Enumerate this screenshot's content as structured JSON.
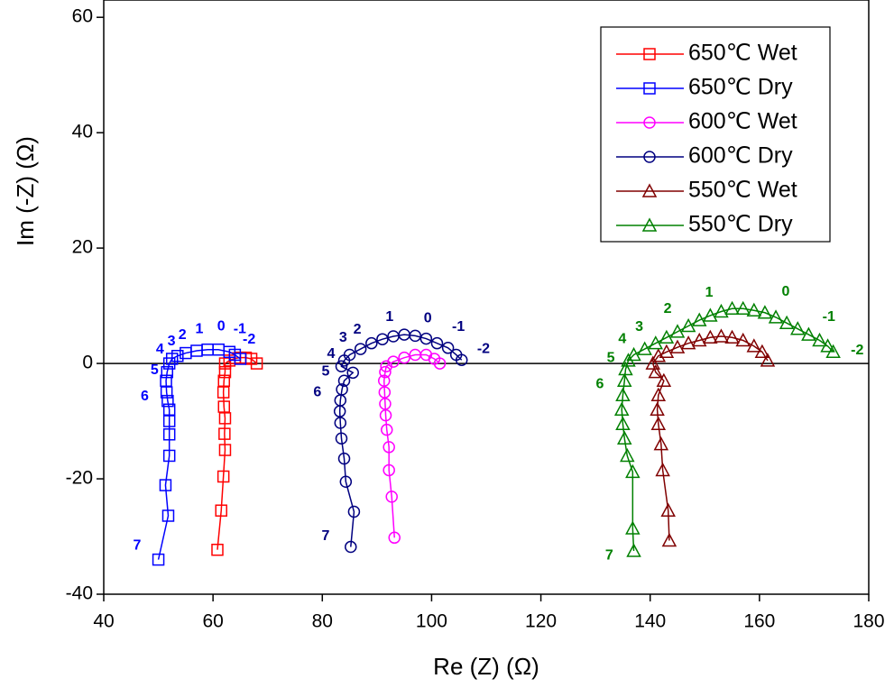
{
  "chart_data": {
    "type": "scatter",
    "xlabel": "Re (Z) (Ω)",
    "ylabel": "Im (-Z) (Ω)",
    "xlim": [
      40,
      180
    ],
    "xticks": [
      40,
      60,
      80,
      100,
      120,
      140,
      160,
      180
    ],
    "ylim": [
      -40,
      63
    ],
    "yticks": [
      -40,
      -20,
      0,
      20,
      40,
      60
    ],
    "zero_line": true,
    "legend": "upper right",
    "series": [
      {
        "name": "650℃ Wet",
        "color": "#ff0000",
        "marker": "square",
        "x": [
          60.8,
          61.5,
          61.9,
          62.2,
          62.1,
          62.2,
          62,
          61.9,
          62,
          62.2,
          62.2,
          63,
          64,
          65,
          66,
          67,
          68
        ],
        "values": [
          -32.3,
          -25.5,
          -19.6,
          -15,
          -12.2,
          -9.5,
          -7.5,
          -5,
          -3,
          -1.5,
          0,
          0.5,
          0.9,
          1,
          1,
          0.8,
          0
        ]
      },
      {
        "name": "650℃ Dry",
        "color": "#0000ff",
        "marker": "square",
        "x": [
          50,
          51.8,
          51.3,
          52,
          52,
          52,
          52,
          51.7,
          51.5,
          51.4,
          51.6,
          52,
          52.5,
          53.5,
          55,
          57,
          59,
          61,
          63,
          64,
          65
        ],
        "values": [
          -34,
          -26.4,
          -21.1,
          -16,
          -12.3,
          -10,
          -8,
          -6.5,
          -5,
          -3,
          -1.5,
          0,
          0.8,
          1.3,
          1.8,
          2.2,
          2.4,
          2.4,
          2,
          1.5,
          0.8
        ]
      },
      {
        "name": "600℃ Wet",
        "color": "#ff00ff",
        "marker": "circle",
        "x": [
          93.2,
          92.7,
          92.2,
          92.2,
          91.8,
          91.6,
          91.5,
          91.4,
          91.3,
          91.5,
          91.7,
          93,
          95,
          97,
          99,
          100.5,
          101.5
        ],
        "values": [
          -30.2,
          -23.1,
          -18.5,
          -14.5,
          -11.5,
          -9,
          -7,
          -5,
          -3,
          -1.5,
          -0.5,
          0.3,
          1,
          1.5,
          1.5,
          0.8,
          0
        ]
      },
      {
        "name": "600℃ Dry",
        "color": "#000080",
        "marker": "circle",
        "x": [
          85.2,
          85.8,
          84.3,
          84,
          83.5,
          83.3,
          83.2,
          83.3,
          83.6,
          84,
          85.6,
          83.5,
          84,
          85,
          87,
          89,
          91,
          93,
          95,
          97,
          99,
          101,
          103,
          104.5,
          105.5
        ],
        "values": [
          -31.8,
          -25.7,
          -20.5,
          -16.5,
          -13,
          -10.3,
          -8.3,
          -6.4,
          -4.5,
          -3,
          -1.6,
          -0.5,
          0.5,
          1.5,
          2.5,
          3.5,
          4.2,
          4.7,
          5,
          4.8,
          4.3,
          3.5,
          2.7,
          1.5,
          0.6
        ]
      },
      {
        "name": "550℃ Wet",
        "color": "#800000",
        "marker": "triangle",
        "x": [
          143.5,
          143.3,
          142.3,
          142,
          141.5,
          141.3,
          141.5,
          142.5,
          141,
          140.5,
          141.5,
          143,
          145,
          147,
          149,
          151,
          153,
          155,
          157,
          159,
          160.5,
          161.5
        ],
        "values": [
          -30.7,
          -25.5,
          -18.5,
          -14,
          -10.5,
          -8,
          -5.5,
          -3,
          -1.5,
          0,
          1.3,
          2,
          2.8,
          3.5,
          4,
          4.5,
          4.7,
          4.5,
          4,
          3,
          2,
          0.5
        ]
      },
      {
        "name": "550℃ Dry",
        "color": "#008000",
        "marker": "triangle",
        "x": [
          137,
          136.8,
          136.8,
          135.8,
          135.3,
          135,
          134.8,
          135,
          135.3,
          135.5,
          136,
          137,
          139,
          141,
          143,
          145,
          147,
          149,
          151,
          153,
          155,
          157,
          159,
          161,
          163,
          165,
          167,
          169,
          171,
          172.5,
          173.5
        ],
        "values": [
          -32.5,
          -28.6,
          -18.8,
          -16,
          -13,
          -10.5,
          -8,
          -5.5,
          -3,
          -1,
          0.5,
          1.5,
          2.5,
          3.5,
          4.5,
          5.5,
          6.5,
          7.5,
          8.3,
          9,
          9.5,
          9.5,
          9.2,
          8.8,
          8,
          7,
          6,
          5,
          4,
          3,
          2
        ]
      }
    ],
    "annotations": [
      {
        "text": "7",
        "x": 46.1,
        "y": -31.6,
        "color": "#0000ff"
      },
      {
        "text": "6",
        "x": 47.5,
        "y": -5.7,
        "color": "#0000ff"
      },
      {
        "text": "5",
        "x": 49.3,
        "y": -1.2,
        "color": "#0000ff"
      },
      {
        "text": "4",
        "x": 50.3,
        "y": 2.4,
        "color": "#0000ff"
      },
      {
        "text": "3",
        "x": 52.4,
        "y": 3.8,
        "color": "#0000ff"
      },
      {
        "text": "2",
        "x": 54.4,
        "y": 4.9,
        "color": "#0000ff"
      },
      {
        "text": "1",
        "x": 57.5,
        "y": 5.9,
        "color": "#0000ff"
      },
      {
        "text": "0",
        "x": 61.5,
        "y": 6.4,
        "color": "#0000ff"
      },
      {
        "text": "-1",
        "x": 64.9,
        "y": 5.9,
        "color": "#0000ff"
      },
      {
        "text": "-2",
        "x": 66.6,
        "y": 4.1,
        "color": "#0000ff"
      },
      {
        "text": "7",
        "x": 80.6,
        "y": -30,
        "color": "#000080"
      },
      {
        "text": "6",
        "x": 79.1,
        "y": -5,
        "color": "#000080"
      },
      {
        "text": "5",
        "x": 80.6,
        "y": -1.4,
        "color": "#000080"
      },
      {
        "text": "4",
        "x": 81.6,
        "y": 1.6,
        "color": "#000080"
      },
      {
        "text": "3",
        "x": 83.8,
        "y": 4.4,
        "color": "#000080"
      },
      {
        "text": "2",
        "x": 86.4,
        "y": 5.8,
        "color": "#000080"
      },
      {
        "text": "1",
        "x": 92.3,
        "y": 8,
        "color": "#000080"
      },
      {
        "text": "0",
        "x": 99.3,
        "y": 7.8,
        "color": "#000080"
      },
      {
        "text": "-1",
        "x": 104.9,
        "y": 6.3,
        "color": "#000080"
      },
      {
        "text": "-2",
        "x": 109.5,
        "y": 2.5,
        "color": "#000080"
      },
      {
        "text": "7",
        "x": 132.5,
        "y": -33.3,
        "color": "#008000"
      },
      {
        "text": "6",
        "x": 130.8,
        "y": -3.6,
        "color": "#008000"
      },
      {
        "text": "5",
        "x": 132.8,
        "y": 0.9,
        "color": "#008000"
      },
      {
        "text": "4",
        "x": 134.9,
        "y": 4.2,
        "color": "#008000"
      },
      {
        "text": "3",
        "x": 138,
        "y": 6.3,
        "color": "#008000"
      },
      {
        "text": "2",
        "x": 143.2,
        "y": 9.4,
        "color": "#008000"
      },
      {
        "text": "1",
        "x": 150.8,
        "y": 12.2,
        "color": "#008000"
      },
      {
        "text": "0",
        "x": 164.8,
        "y": 12.4,
        "color": "#008000"
      },
      {
        "text": "-1",
        "x": 172.7,
        "y": 8,
        "color": "#008000"
      },
      {
        "text": "-2",
        "x": 177.9,
        "y": 2.2,
        "color": "#008000"
      }
    ]
  }
}
